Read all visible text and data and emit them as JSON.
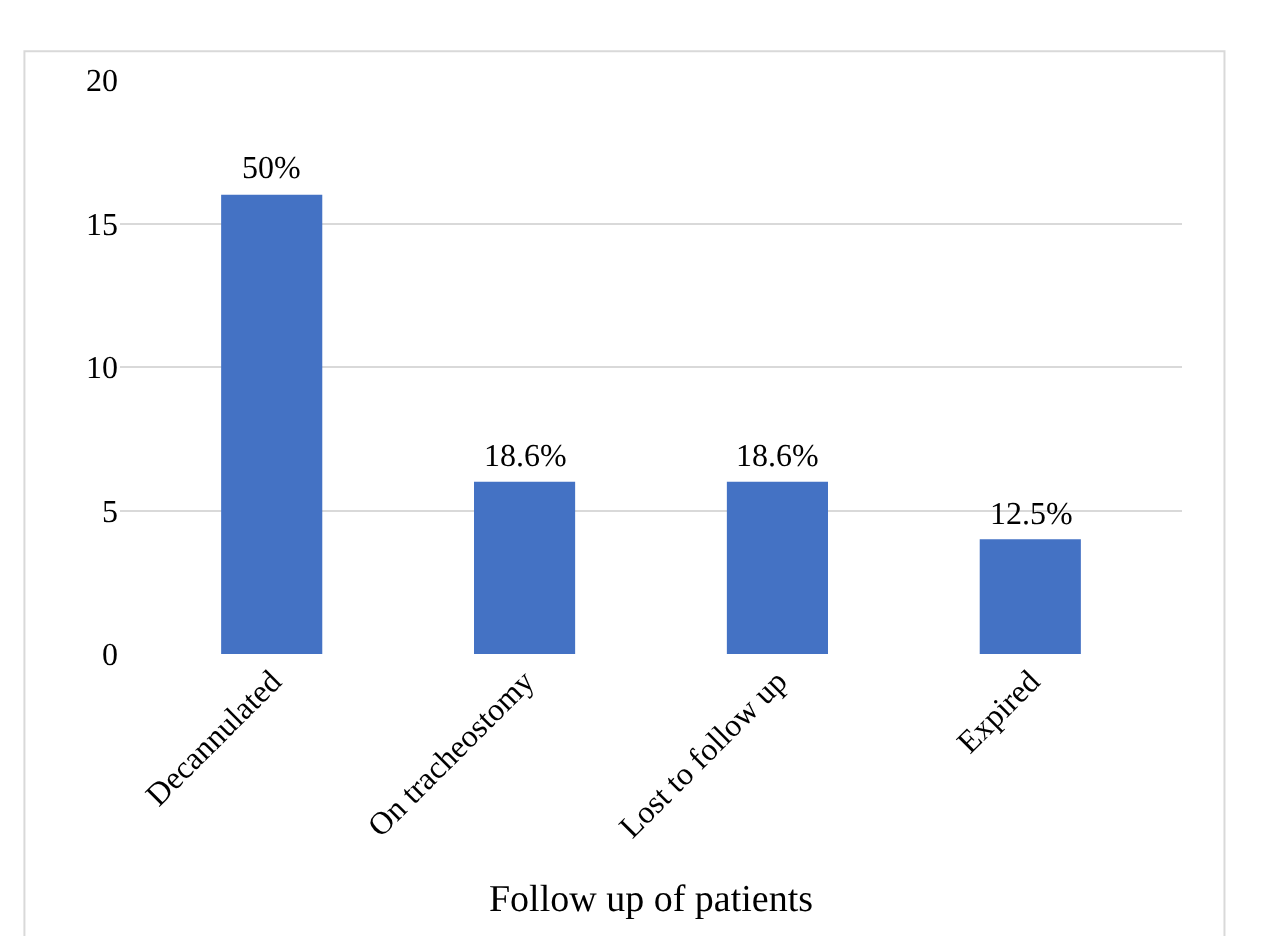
{
  "chart_data": {
    "type": "bar",
    "xlabel": "Follow up of patients",
    "categories": [
      "Decannulated",
      "On tracheostomy",
      "Lost to follow up",
      "Expired"
    ],
    "values": [
      16,
      6,
      6,
      4
    ],
    "annotations": [
      {
        "text": "50%",
        "x": "Decannulated",
        "y": 16
      },
      {
        "text": "18.6%",
        "x": "On tracheostomy",
        "y": 6
      },
      {
        "text": "18.6%",
        "x": "Lost to follow up",
        "y": 6
      },
      {
        "text": "12.5%",
        "x": "Expired",
        "y": 4
      }
    ],
    "color": "#4472c4",
    "ylim": [
      0,
      20
    ],
    "yticks": [
      0,
      5,
      10,
      15,
      20
    ],
    "grid": "y",
    "legend": false
  }
}
